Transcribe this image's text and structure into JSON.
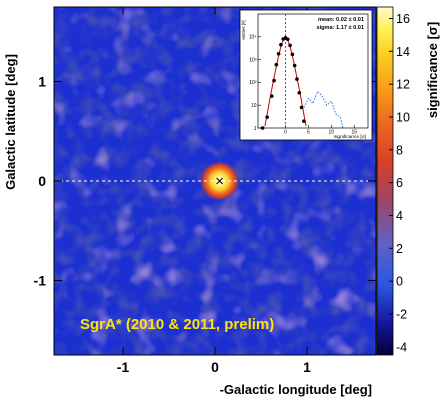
{
  "chart_data": [
    {
      "type": "heatmap",
      "xlabel": "-Galactic longitude [deg]",
      "ylabel": "Galactic latitude [deg]",
      "colorbar_label": "significance [σ]",
      "x_ticks": [
        "-1",
        "0",
        "1"
      ],
      "x_tick_values": [
        -1,
        0,
        1
      ],
      "y_ticks": [
        "1",
        "0",
        "-1"
      ],
      "y_tick_values": [
        1,
        0,
        -1
      ],
      "xlim": [
        -1.75,
        1.75
      ],
      "ylim": [
        -1.75,
        1.75
      ],
      "colorbar_ticks": [
        "16",
        "14",
        "12",
        "10",
        "8",
        "6",
        "4",
        "2",
        "0",
        "-2",
        "-4"
      ],
      "colorbar_values": [
        16,
        14,
        12,
        10,
        8,
        6,
        4,
        2,
        0,
        -2,
        -4
      ],
      "colorbar_range": [
        -4.5,
        16.7
      ],
      "annotation": "SgrA* (2010 & 2011, prelim)",
      "source": {
        "x": 0.05,
        "y": 0.0,
        "peak_significance": 16
      },
      "reference_line_y": 0,
      "colors": {
        "background": "#1c2fd0",
        "annotation": "#ffe600",
        "reference_line": "#ffffff"
      }
    },
    {
      "type": "line",
      "xlabel": "significance [σ]",
      "ylabel": "entries [#]",
      "yscale": "log",
      "ylim": [
        1,
        100000
      ],
      "y_ticks": [
        "1",
        "10",
        "10²",
        "10³",
        "10⁴"
      ],
      "xlim": [
        -6,
        18
      ],
      "x_ticks": [
        "0",
        "5",
        "10",
        "15"
      ],
      "stats": [
        "mean: 0.02 ± 0.01",
        "sigma: 1.17 ± 0.01"
      ],
      "series": [
        {
          "style": "points",
          "color": "#000000",
          "x": [
            -5,
            -4,
            -3,
            -2.5,
            -2,
            -1.5,
            -1,
            -0.5,
            0,
            0.5,
            1,
            1.5,
            2,
            2.5,
            3,
            3.5,
            4
          ],
          "y": [
            1,
            3,
            25,
            120,
            600,
            1800,
            4500,
            8000,
            9000,
            7800,
            4200,
            1700,
            550,
            140,
            35,
            8,
            2
          ]
        },
        {
          "style": "fit",
          "color": "#cc0000",
          "x": [
            -4.5,
            -4,
            -3.5,
            -3,
            -2.5,
            -2,
            -1.5,
            -1,
            -0.5,
            0,
            0.5,
            1,
            1.5,
            2,
            2.5,
            3,
            3.5,
            4,
            4.5
          ],
          "y": [
            1.2,
            4,
            15,
            50,
            160,
            500,
            1500,
            3800,
            7000,
            9000,
            7000,
            3800,
            1500,
            500,
            160,
            50,
            15,
            4,
            1.2
          ]
        },
        {
          "style": "dotted",
          "color": "#2f6fd6",
          "x": [
            4,
            5,
            6,
            7,
            8,
            9,
            10,
            11,
            12,
            12.5
          ],
          "y": [
            8,
            20,
            12,
            40,
            25,
            10,
            15,
            4,
            3,
            1
          ]
        }
      ]
    }
  ]
}
